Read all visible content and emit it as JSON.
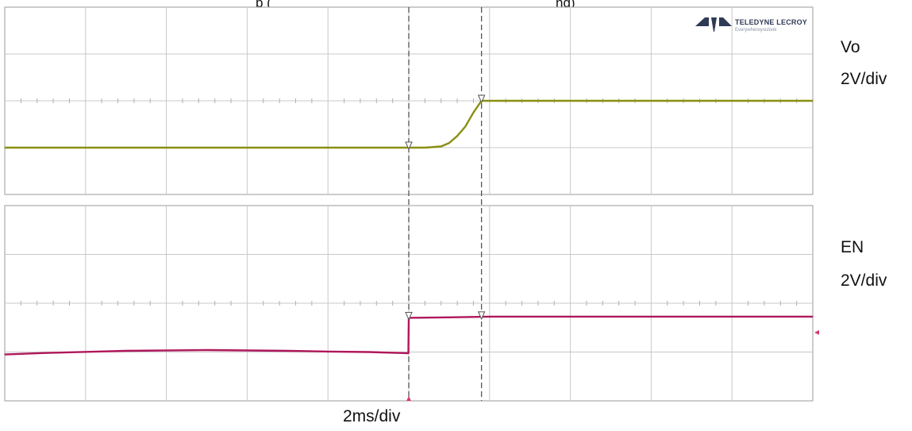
{
  "header_partial_text": "p (",
  "header_partial_text_right": "ng)",
  "brand": {
    "name": "TELEDYNE LECROY",
    "tagline": "Everywhereyoulook"
  },
  "channels": [
    {
      "name": "Vo",
      "scale": "2V/div",
      "color": "#8a8f12"
    },
    {
      "name": "EN",
      "scale": "2V/div",
      "color": "#b0175c"
    }
  ],
  "timebase": "2ms/div",
  "colors": {
    "grid": "#c8c8c8",
    "frame": "#9a9a9a",
    "marker": "#555555",
    "trigger": "#d63a6a"
  },
  "chart_data": {
    "type": "line",
    "x_unit": "ms",
    "x_divisions": 10,
    "x_per_div": 2,
    "y_divisions": 4,
    "y_per_div": 2,
    "cursor_x": [
      10,
      11.8
    ],
    "trigger_x": 10,
    "series": [
      {
        "name": "Vo",
        "panel": 0,
        "x": [
          0,
          4,
          8,
          9.6,
          10.0,
          10.4,
          10.8,
          11.0,
          11.2,
          11.4,
          11.6,
          11.8,
          12,
          14,
          16,
          18,
          20
        ],
        "y": [
          2.0,
          2.0,
          2.0,
          2.0,
          2.0,
          2.0,
          2.05,
          2.2,
          2.5,
          2.9,
          3.5,
          4.0,
          4.0,
          4.0,
          4.0,
          4.0,
          4.0
        ]
      },
      {
        "name": "EN",
        "panel": 1,
        "x": [
          0,
          1,
          3,
          5,
          7,
          8,
          9,
          9.99,
          10.0,
          11,
          12,
          14,
          16,
          18,
          20
        ],
        "y": [
          1.9,
          1.96,
          2.05,
          2.08,
          2.05,
          2.02,
          2.0,
          1.95,
          3.4,
          3.42,
          3.45,
          3.45,
          3.45,
          3.45,
          3.45
        ]
      }
    ]
  }
}
